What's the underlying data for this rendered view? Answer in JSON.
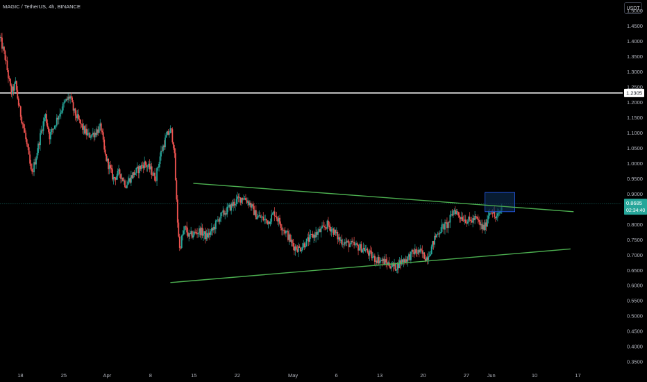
{
  "header": {
    "symbol_line": "MAGIC / TetherUS, 4h, BINANCE",
    "currency_button": "USDT"
  },
  "colors": {
    "background": "#000000",
    "up": "#26a69a",
    "down": "#ef5350",
    "trendline": "#4caf50",
    "horizontal_level": "#ffffff",
    "last_price_badge": "#26a69a",
    "box_fill": "#0d2b4d",
    "box_stroke": "#2962ff"
  },
  "chart_data": {
    "type": "candlestick",
    "symbol": "MAGIC/USDT",
    "interval": "4h",
    "exchange": "BINANCE",
    "ylim": [
      0.33,
      1.535
    ],
    "y_ticks": [
      "1.5000",
      "1.4500",
      "1.4000",
      "1.3500",
      "1.3000",
      "1.2500",
      "1.2000",
      "1.1500",
      "1.1000",
      "1.0500",
      "1.0000",
      "0.9500",
      "0.9000",
      "0.8500",
      "0.8000",
      "0.7500",
      "0.7000",
      "0.6500",
      "0.6000",
      "0.5500",
      "0.5000",
      "0.4500",
      "0.4000",
      "0.3500"
    ],
    "x_ticks": [
      "18",
      "25",
      "Apr",
      "8",
      "15",
      "22",
      "May",
      "6",
      "13",
      "20",
      "27",
      "Jun",
      "10",
      "17"
    ],
    "x_tick_days": [
      0,
      7,
      14,
      21,
      28,
      35,
      44,
      51,
      58,
      65,
      72,
      76,
      83,
      90
    ],
    "x_range_days": [
      -3.3,
      97
    ],
    "horizontal_level": {
      "value": 1.2305,
      "label": "1.2305"
    },
    "last_price": {
      "value": 0.8685,
      "label": "0.8685",
      "countdown": "02:34:40"
    },
    "close_path": [
      [
        -3.3,
        1.41
      ],
      [
        -2.5,
        1.35
      ],
      [
        -2.0,
        1.29
      ],
      [
        -1.5,
        1.23
      ],
      [
        -0.8,
        1.26
      ],
      [
        -0.2,
        1.18
      ],
      [
        0.5,
        1.12
      ],
      [
        1.2,
        1.04
      ],
      [
        1.8,
        0.96
      ],
      [
        2.5,
        1.02
      ],
      [
        3.3,
        1.1
      ],
      [
        4.0,
        1.16
      ],
      [
        4.7,
        1.09
      ],
      [
        5.4,
        1.12
      ],
      [
        6.2,
        1.16
      ],
      [
        7.2,
        1.2
      ],
      [
        8.0,
        1.22
      ],
      [
        8.6,
        1.17
      ],
      [
        9.4,
        1.14
      ],
      [
        10.2,
        1.11
      ],
      [
        11.0,
        1.09
      ],
      [
        12.0,
        1.1
      ],
      [
        13.0,
        1.12
      ],
      [
        13.6,
        1.03
      ],
      [
        14.3,
        0.99
      ],
      [
        15.0,
        0.95
      ],
      [
        16.0,
        0.97
      ],
      [
        17.0,
        0.93
      ],
      [
        18.0,
        0.96
      ],
      [
        19.0,
        0.98
      ],
      [
        20.0,
        1.0
      ],
      [
        21.0,
        0.98
      ],
      [
        21.8,
        0.95
      ],
      [
        22.6,
        1.03
      ],
      [
        23.6,
        1.09
      ],
      [
        24.3,
        1.11
      ],
      [
        24.8,
        1.05
      ],
      [
        25.3,
        0.83
      ],
      [
        25.7,
        0.72
      ],
      [
        26.1,
        0.76
      ],
      [
        26.6,
        0.79
      ],
      [
        27.2,
        0.76
      ],
      [
        28.0,
        0.77
      ],
      [
        29.0,
        0.78
      ],
      [
        30.0,
        0.76
      ],
      [
        31.0,
        0.78
      ],
      [
        32.0,
        0.82
      ],
      [
        33.0,
        0.84
      ],
      [
        34.0,
        0.86
      ],
      [
        35.0,
        0.88
      ],
      [
        36.0,
        0.89
      ],
      [
        37.0,
        0.87
      ],
      [
        38.0,
        0.83
      ],
      [
        39.0,
        0.82
      ],
      [
        40.0,
        0.81
      ],
      [
        41.0,
        0.84
      ],
      [
        42.0,
        0.8
      ],
      [
        43.0,
        0.77
      ],
      [
        44.0,
        0.73
      ],
      [
        45.0,
        0.72
      ],
      [
        46.0,
        0.74
      ],
      [
        47.0,
        0.76
      ],
      [
        48.5,
        0.78
      ],
      [
        49.5,
        0.8
      ],
      [
        50.5,
        0.78
      ],
      [
        51.5,
        0.75
      ],
      [
        52.5,
        0.74
      ],
      [
        54.0,
        0.73
      ],
      [
        55.5,
        0.72
      ],
      [
        57.0,
        0.69
      ],
      [
        58.5,
        0.68
      ],
      [
        59.5,
        0.67
      ],
      [
        60.5,
        0.66
      ],
      [
        61.5,
        0.68
      ],
      [
        62.5,
        0.69
      ],
      [
        63.5,
        0.71
      ],
      [
        64.5,
        0.71
      ],
      [
        65.5,
        0.69
      ],
      [
        66.3,
        0.72
      ],
      [
        67.0,
        0.76
      ],
      [
        68.0,
        0.79
      ],
      [
        69.0,
        0.8
      ],
      [
        70.0,
        0.85
      ],
      [
        70.8,
        0.83
      ],
      [
        71.6,
        0.82
      ],
      [
        72.5,
        0.81
      ],
      [
        73.5,
        0.82
      ],
      [
        74.5,
        0.79
      ],
      [
        75.0,
        0.79
      ],
      [
        75.6,
        0.84
      ],
      [
        76.1,
        0.85
      ],
      [
        76.6,
        0.82
      ],
      [
        77.2,
        0.83
      ],
      [
        77.8,
        0.86
      ]
    ],
    "trendlines": [
      {
        "name": "upper",
        "from": [
          27.9,
          0.935
        ],
        "to": [
          89.3,
          0.842
        ]
      },
      {
        "name": "lower",
        "from": [
          24.2,
          0.61
        ],
        "to": [
          88.8,
          0.72
        ]
      }
    ],
    "box": {
      "from_day": 75.0,
      "to_day": 79.8,
      "top": 0.905,
      "bottom": 0.842
    }
  }
}
